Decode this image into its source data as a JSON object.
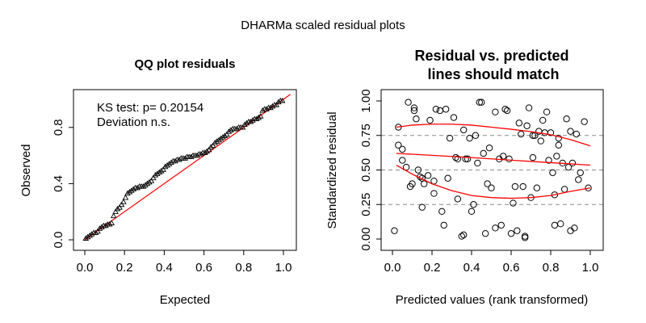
{
  "page": {
    "title": "DHARMa scaled residual plots"
  },
  "chart_data": [
    {
      "type": "scatter",
      "title": "QQ plot residuals",
      "xlabel": "Expected",
      "ylabel": "Observed",
      "xlim": [
        0,
        1
      ],
      "ylim": [
        0,
        1
      ],
      "xticks": [
        "0.0",
        "0.2",
        "0.4",
        "0.6",
        "0.8",
        "1.0"
      ],
      "xtick_values": [
        0,
        0.2,
        0.4,
        0.6,
        0.8,
        1.0
      ],
      "yticks": [
        "0.0",
        "0.4",
        "0.8"
      ],
      "ytick_values": [
        0,
        0.4,
        0.8
      ],
      "annotations": [
        "KS test: p= 0.20154",
        "Deviation  n.s."
      ],
      "marker": "triangle",
      "reference_line": {
        "from": [
          0,
          0
        ],
        "to": [
          1,
          1
        ],
        "color": "#ff0000"
      },
      "x": [
        0.005,
        0.015,
        0.025,
        0.035,
        0.045,
        0.055,
        0.065,
        0.075,
        0.085,
        0.095,
        0.105,
        0.115,
        0.125,
        0.135,
        0.145,
        0.155,
        0.165,
        0.175,
        0.185,
        0.195,
        0.205,
        0.215,
        0.225,
        0.235,
        0.245,
        0.255,
        0.265,
        0.275,
        0.285,
        0.295,
        0.305,
        0.315,
        0.325,
        0.335,
        0.345,
        0.355,
        0.365,
        0.375,
        0.385,
        0.395,
        0.405,
        0.415,
        0.425,
        0.435,
        0.445,
        0.455,
        0.465,
        0.475,
        0.485,
        0.495,
        0.505,
        0.515,
        0.525,
        0.535,
        0.545,
        0.555,
        0.565,
        0.575,
        0.585,
        0.595,
        0.605,
        0.615,
        0.625,
        0.635,
        0.645,
        0.655,
        0.665,
        0.675,
        0.685,
        0.695,
        0.705,
        0.715,
        0.725,
        0.735,
        0.745,
        0.755,
        0.765,
        0.775,
        0.785,
        0.795,
        0.805,
        0.815,
        0.825,
        0.835,
        0.845,
        0.855,
        0.865,
        0.875,
        0.885,
        0.895,
        0.905,
        0.915,
        0.925,
        0.935,
        0.945,
        0.955,
        0.965,
        0.975,
        0.985,
        0.995
      ],
      "y": [
        0.01,
        0.02,
        0.03,
        0.04,
        0.05,
        0.05,
        0.06,
        0.08,
        0.09,
        0.1,
        0.1,
        0.11,
        0.11,
        0.12,
        0.17,
        0.2,
        0.22,
        0.23,
        0.25,
        0.27,
        0.3,
        0.33,
        0.34,
        0.35,
        0.36,
        0.37,
        0.37,
        0.38,
        0.38,
        0.38,
        0.39,
        0.4,
        0.41,
        0.42,
        0.44,
        0.46,
        0.47,
        0.48,
        0.49,
        0.5,
        0.52,
        0.53,
        0.54,
        0.55,
        0.56,
        0.56,
        0.57,
        0.57,
        0.58,
        0.58,
        0.58,
        0.59,
        0.59,
        0.59,
        0.6,
        0.6,
        0.6,
        0.61,
        0.61,
        0.62,
        0.62,
        0.63,
        0.64,
        0.66,
        0.67,
        0.69,
        0.7,
        0.71,
        0.72,
        0.73,
        0.74,
        0.75,
        0.77,
        0.78,
        0.79,
        0.79,
        0.79,
        0.8,
        0.8,
        0.8,
        0.82,
        0.83,
        0.84,
        0.84,
        0.85,
        0.86,
        0.86,
        0.87,
        0.88,
        0.92,
        0.93,
        0.93,
        0.94,
        0.94,
        0.95,
        0.96,
        0.96,
        0.98,
        0.99,
        0.99
      ]
    },
    {
      "type": "scatter",
      "title": "Residual vs. predicted",
      "subtitle": "lines should match",
      "xlabel": "Predicted values (rank transformed)",
      "ylabel": "Standardized residual",
      "xlim": [
        0,
        1
      ],
      "ylim": [
        0,
        1
      ],
      "xticks": [
        "0.0",
        "0.2",
        "0.4",
        "0.6",
        "0.8",
        "1.0"
      ],
      "xtick_values": [
        0,
        0.2,
        0.4,
        0.6,
        0.8,
        1.0
      ],
      "yticks": [
        "0.00",
        "0.25",
        "0.50",
        "0.75",
        "1.00"
      ],
      "ytick_values": [
        0,
        0.25,
        0.5,
        0.75,
        1.0
      ],
      "marker": "circle",
      "reference_lines_y": [
        0.25,
        0.5,
        0.75
      ],
      "points": [
        [
          0.01,
          0.06
        ],
        [
          0.03,
          0.81
        ],
        [
          0.03,
          0.68
        ],
        [
          0.05,
          0.65
        ],
        [
          0.05,
          0.57
        ],
        [
          0.07,
          0.52
        ],
        [
          0.08,
          0.99
        ],
        [
          0.09,
          0.38
        ],
        [
          0.1,
          0.4
        ],
        [
          0.11,
          0.95
        ],
        [
          0.11,
          0.93
        ],
        [
          0.12,
          0.87
        ],
        [
          0.13,
          0.5
        ],
        [
          0.14,
          0.45
        ],
        [
          0.15,
          0.44
        ],
        [
          0.15,
          0.23
        ],
        [
          0.16,
          0.4
        ],
        [
          0.18,
          0.46
        ],
        [
          0.19,
          0.86
        ],
        [
          0.21,
          0.42
        ],
        [
          0.21,
          0.33
        ],
        [
          0.22,
          0.94
        ],
        [
          0.24,
          0.93
        ],
        [
          0.25,
          0.2
        ],
        [
          0.26,
          0.1
        ],
        [
          0.27,
          0.94
        ],
        [
          0.28,
          0.44
        ],
        [
          0.29,
          0.73
        ],
        [
          0.31,
          0.88
        ],
        [
          0.32,
          0.59
        ],
        [
          0.33,
          0.58
        ],
        [
          0.33,
          0.29
        ],
        [
          0.35,
          0.02
        ],
        [
          0.36,
          0.03
        ],
        [
          0.36,
          0.79
        ],
        [
          0.37,
          0.58
        ],
        [
          0.38,
          0.58
        ],
        [
          0.39,
          0.73
        ],
        [
          0.4,
          0.2
        ],
        [
          0.41,
          0.25
        ],
        [
          0.42,
          0.75
        ],
        [
          0.43,
          0.55
        ],
        [
          0.44,
          0.99
        ],
        [
          0.45,
          0.99
        ],
        [
          0.46,
          0.62
        ],
        [
          0.47,
          0.04
        ],
        [
          0.48,
          0.4
        ],
        [
          0.49,
          0.66
        ],
        [
          0.5,
          0.37
        ],
        [
          0.52,
          0.08
        ],
        [
          0.52,
          0.92
        ],
        [
          0.54,
          0.58
        ],
        [
          0.55,
          0.1
        ],
        [
          0.56,
          0.6
        ],
        [
          0.57,
          0.94
        ],
        [
          0.58,
          0.93
        ],
        [
          0.59,
          0.58
        ],
        [
          0.6,
          0.04
        ],
        [
          0.61,
          0.26
        ],
        [
          0.62,
          0.38
        ],
        [
          0.63,
          0.06
        ],
        [
          0.64,
          0.84
        ],
        [
          0.65,
          0.76
        ],
        [
          0.66,
          0.38
        ],
        [
          0.67,
          0.02
        ],
        [
          0.67,
          0.01
        ],
        [
          0.68,
          0.82
        ],
        [
          0.69,
          0.95
        ],
        [
          0.7,
          0.3
        ],
        [
          0.71,
          0.59
        ],
        [
          0.71,
          0.75
        ],
        [
          0.72,
          0.75
        ],
        [
          0.73,
          0.37
        ],
        [
          0.74,
          0.78
        ],
        [
          0.75,
          0.71
        ],
        [
          0.76,
          0.86
        ],
        [
          0.77,
          0.77
        ],
        [
          0.78,
          0.92
        ],
        [
          0.79,
          0.57
        ],
        [
          0.8,
          0.77
        ],
        [
          0.81,
          0.48
        ],
        [
          0.82,
          0.32
        ],
        [
          0.82,
          0.1
        ],
        [
          0.83,
          0.6
        ],
        [
          0.84,
          0.73
        ],
        [
          0.84,
          0.68
        ],
        [
          0.85,
          0.11
        ],
        [
          0.86,
          0.55
        ],
        [
          0.87,
          0.36
        ],
        [
          0.88,
          0.87
        ],
        [
          0.89,
          0.52
        ],
        [
          0.9,
          0.06
        ],
        [
          0.9,
          0.78
        ],
        [
          0.91,
          0.55
        ],
        [
          0.92,
          0.08
        ],
        [
          0.93,
          0.76
        ],
        [
          0.94,
          0.43
        ],
        [
          0.95,
          0.48
        ],
        [
          0.97,
          0.85
        ],
        [
          0.99,
          0.37
        ]
      ],
      "curves": [
        {
          "color": "#ff0000",
          "x": [
            0.02,
            0.1,
            0.2,
            0.3,
            0.4,
            0.5,
            0.6,
            0.7,
            0.8,
            0.9,
            1.0
          ],
          "y": [
            0.81,
            0.825,
            0.832,
            0.832,
            0.825,
            0.81,
            0.795,
            0.778,
            0.755,
            0.72,
            0.675
          ]
        },
        {
          "color": "#ff0000",
          "x": [
            0.02,
            0.2,
            0.4,
            0.6,
            0.8,
            1.0
          ],
          "y": [
            0.62,
            0.606,
            0.59,
            0.571,
            0.553,
            0.535
          ]
        },
        {
          "color": "#ff0000",
          "x": [
            0.02,
            0.1,
            0.2,
            0.3,
            0.4,
            0.5,
            0.6,
            0.7,
            0.8,
            0.9,
            1.0
          ],
          "y": [
            0.535,
            0.47,
            0.4,
            0.35,
            0.315,
            0.3,
            0.295,
            0.3,
            0.315,
            0.345,
            0.37
          ]
        }
      ]
    }
  ]
}
